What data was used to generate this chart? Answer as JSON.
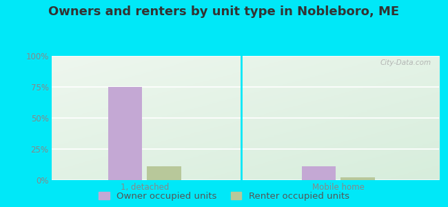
{
  "title": "Owners and renters by unit type in Nobleboro, ME",
  "categories": [
    "1, detached",
    "Mobile home"
  ],
  "owner_values": [
    75,
    11
  ],
  "renter_values": [
    11,
    2
  ],
  "owner_color": "#c4a8d4",
  "renter_color": "#b8c89a",
  "ylim": [
    0,
    100
  ],
  "yticks": [
    0,
    25,
    50,
    75,
    100
  ],
  "ytick_labels": [
    "0%",
    "25%",
    "50%",
    "75%",
    "100%"
  ],
  "legend_owner": "Owner occupied units",
  "legend_renter": "Renter occupied units",
  "outer_bg": "#00e8f8",
  "plot_bg_tl": "#f0f8f0",
  "plot_bg_br": "#d8edd8",
  "watermark": "City-Data.com",
  "title_fontsize": 13,
  "tick_fontsize": 8.5,
  "legend_fontsize": 9.5
}
